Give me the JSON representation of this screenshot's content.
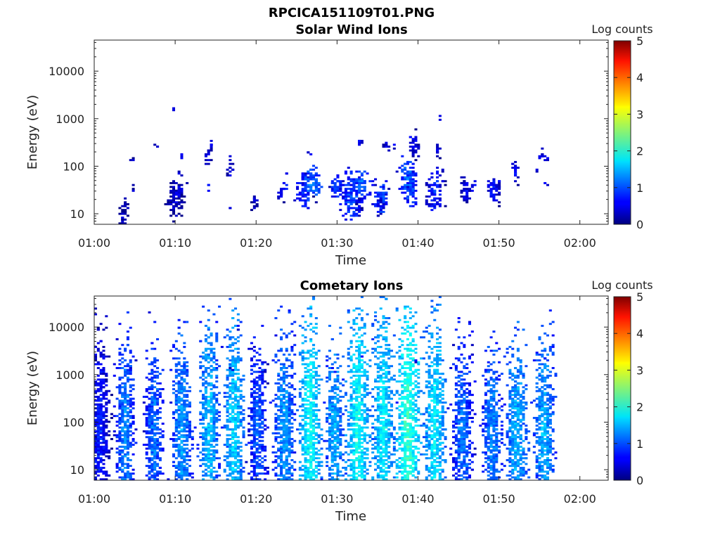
{
  "figure": {
    "title": "RPCICA151109T01.PNG"
  },
  "chart_data": [
    {
      "type": "heatmap",
      "title": "Solar Wind Ions",
      "xlabel": "Time",
      "ylabel": "Energy (eV)",
      "x_tick_labels": [
        "01:00",
        "01:10",
        "01:20",
        "01:30",
        "01:40",
        "01:50",
        "02:00"
      ],
      "x_ticks_min": [
        0,
        10,
        20,
        30,
        40,
        50,
        60
      ],
      "xlim_min": [
        0,
        63.5
      ],
      "y_scale": "log",
      "y_tick_labels": [
        "10",
        "100",
        "1000",
        "10000"
      ],
      "y_ticks": [
        10,
        100,
        1000,
        10000
      ],
      "ylim": [
        6,
        45000
      ],
      "colorbar": {
        "label": "Log counts",
        "ticks": [
          "0",
          "1",
          "2",
          "3",
          "4",
          "5"
        ],
        "range": [
          0,
          5
        ],
        "colormap": "jet"
      },
      "clusters": [
        [
          3.5,
          8,
          0.5,
          3,
          0.4,
          0.7
        ],
        [
          3.8,
          15,
          0.3,
          2,
          0.4,
          0.7
        ],
        [
          4.6,
          140,
          0.2,
          1,
          0.4,
          0.5
        ],
        [
          4.9,
          36,
          0.2,
          1,
          0.5,
          0.5
        ],
        [
          7.6,
          270,
          0.2,
          1,
          0.4,
          0.5
        ],
        [
          10.0,
          20,
          0.9,
          5,
          0.5,
          1.0
        ],
        [
          10.5,
          30,
          0.6,
          3,
          0.6,
          0.8
        ],
        [
          9.8,
          1600,
          0.1,
          1,
          0.5,
          0.5
        ],
        [
          10.8,
          160,
          0.2,
          1,
          0.6,
          0.5
        ],
        [
          10.8,
          70,
          0.2,
          1,
          0.6,
          0.5
        ],
        [
          14.2,
          150,
          0.3,
          3,
          0.6,
          0.7
        ],
        [
          14.4,
          300,
          0.2,
          2,
          0.6,
          0.5
        ],
        [
          14.2,
          40,
          0.1,
          2,
          0.6,
          0.6
        ],
        [
          16.8,
          90,
          0.3,
          3,
          0.6,
          0.7
        ],
        [
          16.7,
          13,
          0.1,
          1,
          0.6,
          0.5
        ],
        [
          19.8,
          16,
          0.3,
          3,
          0.5,
          0.8
        ],
        [
          23.0,
          25,
          0.4,
          2,
          0.6,
          0.6
        ],
        [
          23.5,
          36,
          0.3,
          2,
          0.7,
          0.6
        ],
        [
          23.7,
          70,
          0.1,
          1,
          0.6,
          0.5
        ],
        [
          26.0,
          30,
          0.9,
          5,
          0.9,
          1.0
        ],
        [
          26.8,
          45,
          0.8,
          5,
          1.2,
          0.9
        ],
        [
          27.5,
          40,
          0.4,
          3,
          1.2,
          0.7
        ],
        [
          26.5,
          180,
          0.2,
          1,
          0.6,
          0.5
        ],
        [
          30.0,
          35,
          0.7,
          4,
          1.0,
          1.0
        ],
        [
          31.8,
          25,
          1.1,
          7,
          1.1,
          1.1
        ],
        [
          33.0,
          40,
          0.9,
          4,
          1.2,
          0.8
        ],
        [
          32.8,
          15,
          0.3,
          3,
          0.6,
          0.7
        ],
        [
          32.9,
          330,
          0.2,
          2,
          0.6,
          0.5
        ],
        [
          35.5,
          22,
          0.7,
          5,
          1.1,
          1.0
        ],
        [
          35.3,
          13,
          0.4,
          3,
          0.6,
          0.7
        ],
        [
          36.0,
          260,
          0.4,
          2,
          0.5,
          0.6
        ],
        [
          37.0,
          280,
          0.1,
          1,
          0.6,
          0.5
        ],
        [
          38.7,
          55,
          0.9,
          6,
          1.3,
          1.2
        ],
        [
          39.2,
          30,
          0.6,
          4,
          1.0,
          0.8
        ],
        [
          39.6,
          275,
          0.5,
          4,
          0.6,
          0.8
        ],
        [
          39.0,
          380,
          0.1,
          1,
          0.6,
          0.5
        ],
        [
          39.6,
          70,
          0.2,
          2,
          0.7,
          0.6
        ],
        [
          42.1,
          32,
          0.9,
          6,
          0.9,
          1.0
        ],
        [
          42.5,
          210,
          0.3,
          3,
          0.6,
          0.8
        ],
        [
          42.6,
          1050,
          0.1,
          1,
          0.6,
          0.5
        ],
        [
          45.9,
          30,
          0.6,
          4,
          0.6,
          0.8
        ],
        [
          46.8,
          40,
          0.2,
          2,
          0.6,
          0.6
        ],
        [
          49.3,
          33,
          0.6,
          5,
          0.7,
          0.9
        ],
        [
          49.9,
          40,
          0.2,
          2,
          0.6,
          0.6
        ],
        [
          52.0,
          70,
          0.3,
          4,
          0.7,
          0.9
        ],
        [
          51.7,
          110,
          0.1,
          1,
          0.6,
          0.5
        ],
        [
          54.7,
          80,
          0.1,
          1,
          0.6,
          0.5
        ],
        [
          55.6,
          165,
          0.4,
          2,
          0.7,
          0.5
        ],
        [
          55.9,
          40,
          0.1,
          1,
          0.6,
          0.5
        ]
      ]
    },
    {
      "type": "heatmap",
      "title": "Cometary Ions",
      "xlabel": "Time",
      "ylabel": "Energy (eV)",
      "x_tick_labels": [
        "01:00",
        "01:10",
        "01:20",
        "01:30",
        "01:40",
        "01:50",
        "02:00"
      ],
      "x_ticks_min": [
        0,
        10,
        20,
        30,
        40,
        50,
        60
      ],
      "xlim_min": [
        0,
        63.5
      ],
      "y_scale": "log",
      "y_tick_labels": [
        "10",
        "100",
        "1000",
        "10000"
      ],
      "y_ticks": [
        10,
        100,
        1000,
        10000
      ],
      "ylim": [
        6,
        45000
      ],
      "colorbar": {
        "label": "Log counts",
        "ticks": [
          "0",
          "1",
          "2",
          "3",
          "4",
          "5"
        ],
        "range": [
          0,
          5
        ],
        "colormap": "jet"
      },
      "clusters": [
        [
          0.7,
          60,
          1.0,
          28,
          0.9,
          1.3
        ],
        [
          3.8,
          60,
          0.9,
          28,
          1.4,
          1.3
        ],
        [
          7.4,
          60,
          0.9,
          26,
          1.3,
          1.3
        ],
        [
          10.8,
          60,
          1.0,
          28,
          1.5,
          1.3
        ],
        [
          14.2,
          70,
          1.0,
          32,
          1.7,
          1.4
        ],
        [
          17.3,
          70,
          1.0,
          32,
          1.8,
          1.4
        ],
        [
          20.2,
          70,
          0.9,
          26,
          1.2,
          1.3
        ],
        [
          23.5,
          70,
          1.1,
          28,
          1.5,
          1.3
        ],
        [
          26.7,
          65,
          1.1,
          36,
          2.0,
          1.4
        ],
        [
          29.7,
          50,
          0.9,
          26,
          1.6,
          1.2
        ],
        [
          32.6,
          65,
          1.2,
          36,
          2.0,
          1.4
        ],
        [
          35.7,
          65,
          1.1,
          36,
          1.9,
          1.4
        ],
        [
          38.8,
          70,
          1.2,
          36,
          2.2,
          1.4
        ],
        [
          42.1,
          65,
          1.1,
          32,
          1.9,
          1.4
        ],
        [
          45.5,
          60,
          1.1,
          26,
          1.3,
          1.3
        ],
        [
          49.2,
          60,
          1.0,
          24,
          1.4,
          1.2
        ],
        [
          52.2,
          60,
          1.1,
          26,
          1.6,
          1.2
        ],
        [
          55.6,
          70,
          1.0,
          28,
          1.6,
          1.3
        ],
        [
          18.0,
          10500,
          0.1,
          1,
          0.6,
          0.3
        ],
        [
          4.5,
          1300,
          0.1,
          1,
          0.6,
          0.3
        ],
        [
          33.0,
          2300,
          0.1,
          1,
          0.6,
          0.3
        ],
        [
          39.7,
          1900,
          0.1,
          1,
          0.6,
          0.3
        ],
        [
          55.8,
          2300,
          0.1,
          1,
          0.6,
          0.3
        ],
        [
          17.0,
          1400,
          0.1,
          1,
          0.6,
          0.3
        ],
        [
          29.6,
          1200,
          0.1,
          1,
          0.6,
          0.3
        ]
      ]
    }
  ]
}
